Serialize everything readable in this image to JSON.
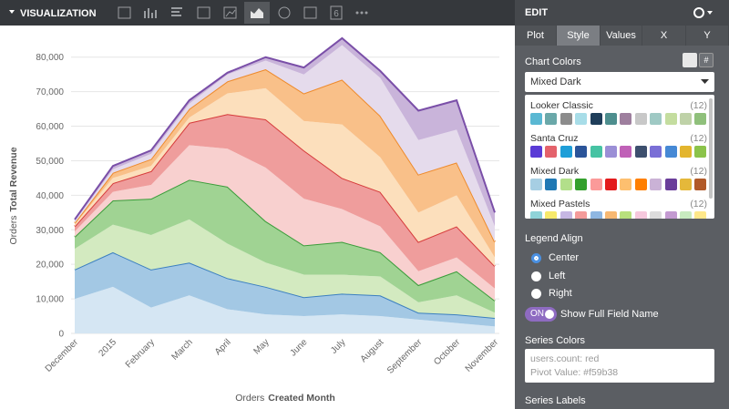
{
  "toolbar": {
    "title": "VISUALIZATION",
    "single_value_icon": "6"
  },
  "chart_data": {
    "type": "area",
    "stacked": true,
    "grid": true,
    "categories": [
      "December",
      "2015",
      "February",
      "March",
      "April",
      "May",
      "June",
      "July",
      "August",
      "September",
      "October",
      "November"
    ],
    "x_label": {
      "view": "Orders",
      "field": "Created Month"
    },
    "y_label": {
      "view": "Orders",
      "field": "Total Revenue"
    },
    "ylim": [
      0,
      86000
    ],
    "yticks": [
      0,
      {
        "value": 10000,
        "label": "10,000"
      },
      {
        "value": 20000,
        "label": "20,000"
      },
      {
        "value": 30000,
        "label": "30,000"
      },
      {
        "value": 40000,
        "label": "40,000"
      },
      {
        "value": 50000,
        "label": "50,000"
      },
      {
        "value": 60000,
        "label": "60,000"
      },
      {
        "value": 70000,
        "label": "70,000"
      },
      {
        "value": 80000,
        "label": "80,000"
      }
    ],
    "series": [
      {
        "color": "#d5e6f3",
        "values": [
          10000,
          13500,
          7500,
          11000,
          7000,
          5500,
          5000,
          5500,
          5000,
          4000,
          3000,
          2000
        ]
      },
      {
        "color": "#a3c8e4",
        "line_color": "#3b7fc0",
        "values": [
          8500,
          10000,
          11000,
          9500,
          9000,
          8000,
          5500,
          6000,
          6000,
          2000,
          2500,
          2500
        ]
      },
      {
        "color": "#d3eac0",
        "values": [
          6000,
          8000,
          10000,
          12500,
          10000,
          7000,
          6500,
          5500,
          5500,
          3000,
          5500,
          1500
        ]
      },
      {
        "color": "#a0d393",
        "line_color": "#3a9c3a",
        "values": [
          3500,
          7000,
          10500,
          11500,
          16500,
          12000,
          8500,
          9500,
          7000,
          5000,
          7000,
          3500
        ]
      },
      {
        "color": "#f8d0cf",
        "values": [
          1500,
          2500,
          4000,
          10000,
          11000,
          15500,
          13500,
          9500,
          7500,
          4000,
          4000,
          3500
        ]
      },
      {
        "color": "#ef9d9c",
        "line_color": "#d63a3a",
        "values": [
          1500,
          2500,
          4000,
          6500,
          10000,
          14000,
          14000,
          9000,
          10000,
          8500,
          9000,
          6500
        ]
      },
      {
        "color": "#fcdfbc",
        "values": [
          500,
          1500,
          1500,
          1500,
          6000,
          9000,
          8500,
          15500,
          10000,
          8500,
          9000,
          2500
        ]
      },
      {
        "color": "#f9c089",
        "line_color": "#ee8a2a",
        "values": [
          500,
          1500,
          2000,
          2500,
          3500,
          5500,
          8000,
          13000,
          12000,
          11000,
          9500,
          4500
        ]
      },
      {
        "color": "#e5dbec",
        "values": [
          500,
          1000,
          1500,
          1500,
          2000,
          2500,
          5500,
          10000,
          11000,
          10000,
          9500,
          4500
        ]
      },
      {
        "color": "#c9b4da",
        "line_color": "#7a4fa8",
        "values": [
          500,
          1000,
          1000,
          1000,
          500,
          1000,
          2000,
          2000,
          2000,
          8500,
          8500,
          4000
        ]
      }
    ]
  },
  "edit_panel": {
    "title": "EDIT",
    "tabs": [
      "Plot",
      "Style",
      "Values",
      "X",
      "Y"
    ],
    "active_tab": 1,
    "chart_colors": {
      "label": "Chart Colors",
      "selected": "Mixed Dark",
      "palettes": [
        {
          "name": "Looker Classic",
          "count": "(12)",
          "colors": [
            "#5ab8d3",
            "#6aa8a9",
            "#8c8c8c",
            "#a8dde8",
            "#1f3e5a",
            "#4d8e8e",
            "#9e7f9e",
            "#c8c8c8",
            "#9fc9c4",
            "#c4dd9f",
            "#bfd2a8",
            "#8fc07b"
          ]
        },
        {
          "name": "Santa Cruz",
          "count": "(12)",
          "colors": [
            "#5a3bd6",
            "#e4626b",
            "#1e9ed8",
            "#2b5499",
            "#46c3a3",
            "#9b8fd6",
            "#c061b7",
            "#3d4f6e",
            "#7a6fd6",
            "#4689d5",
            "#e3b52e",
            "#8bc34a"
          ]
        },
        {
          "name": "Mixed Dark",
          "count": "(12)",
          "colors": [
            "#a6cee3",
            "#1f78b4",
            "#b2df8a",
            "#33a02c",
            "#fb9a99",
            "#e31a1c",
            "#fdbf6f",
            "#ff7f00",
            "#cab2d6",
            "#6a3d9a",
            "#e5b83a",
            "#b15928"
          ]
        },
        {
          "name": "Mixed Pastels",
          "count": "(12)",
          "colors": [
            "#8fd3d8",
            "#f7e96a",
            "#c6b7e3",
            "#f49b9a",
            "#8fb7e2",
            "#f7b872",
            "#b8e07d",
            "#f6c8dd",
            "#dcdcdc",
            "#c39ad1",
            "#c8ebc0",
            "#ffe88a"
          ]
        }
      ]
    },
    "legend_align": {
      "label": "Legend Align",
      "options": [
        "Center",
        "Left",
        "Right"
      ],
      "selected": 0
    },
    "full_field_name": {
      "toggle": "ON",
      "label": "Show Full Field Name"
    },
    "series_colors": {
      "label": "Series Colors",
      "placeholder": [
        "users.count: red",
        "Pivot Value: #f59b38"
      ]
    },
    "series_labels": {
      "label": "Series Labels"
    }
  }
}
